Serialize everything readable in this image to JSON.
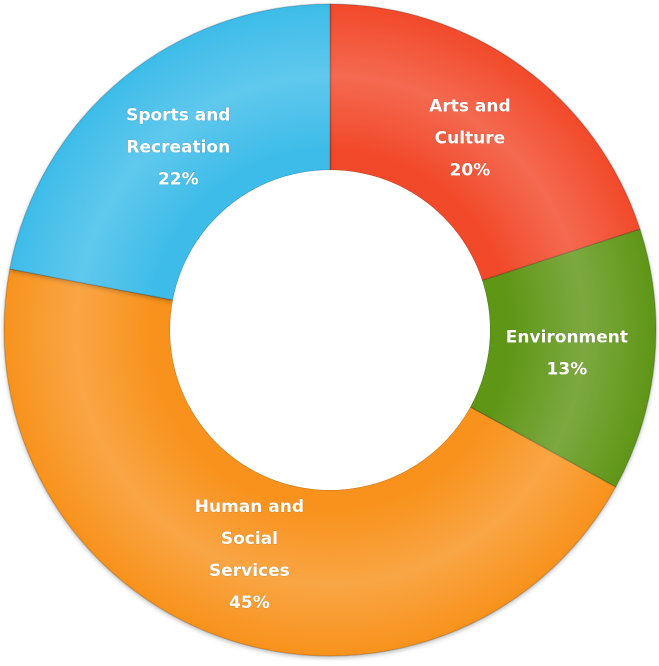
{
  "chart_data": {
    "type": "pie",
    "variant": "donut",
    "title": "",
    "slices": [
      {
        "label": "Arts and Culture",
        "label_lines": [
          "Arts and",
          "Culture"
        ],
        "value": 20,
        "value_label": "20%",
        "color": "#f24a2c"
      },
      {
        "label": "Environment",
        "label_lines": [
          "Environment"
        ],
        "value": 13,
        "value_label": "13%",
        "color": "#5f9618"
      },
      {
        "label": "Human and Social Services",
        "label_lines": [
          "Human and",
          "Social",
          "Services"
        ],
        "value": 45,
        "value_label": "45%",
        "color": "#f8921f"
      },
      {
        "label": "Sports and Recreation",
        "label_lines": [
          "Sports and",
          "Recreation"
        ],
        "value": 22,
        "value_label": "22%",
        "color": "#3cbce9"
      }
    ],
    "start_angle_deg": 0,
    "direction": "clockwise",
    "legend": "none"
  }
}
